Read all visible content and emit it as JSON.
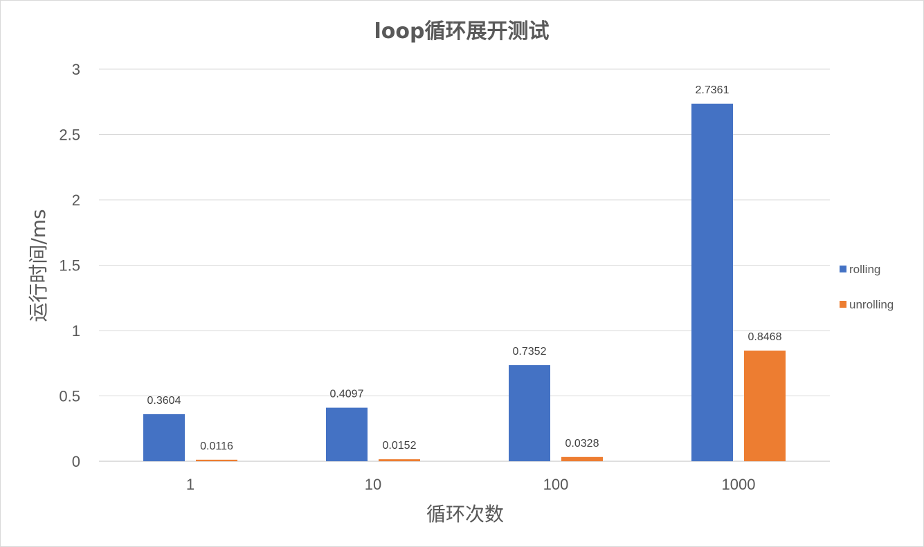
{
  "chart_data": {
    "type": "bar",
    "title": "loop循环展开测试",
    "xlabel": "循环次数",
    "ylabel": "运行时间/ms",
    "categories": [
      "1",
      "10",
      "100",
      "1000"
    ],
    "series": [
      {
        "name": "rolling",
        "color": "#4472C4",
        "values": [
          0.3604,
          0.4097,
          0.7352,
          2.7361
        ]
      },
      {
        "name": "unrolling",
        "color": "#ED7D31",
        "values": [
          0.0116,
          0.0152,
          0.0328,
          0.8468
        ]
      }
    ],
    "ylim": [
      0,
      3
    ],
    "yticks": [
      "0",
      "0.5",
      "1",
      "1.5",
      "2",
      "2.5",
      "3"
    ],
    "grid": true,
    "legend": "right"
  }
}
